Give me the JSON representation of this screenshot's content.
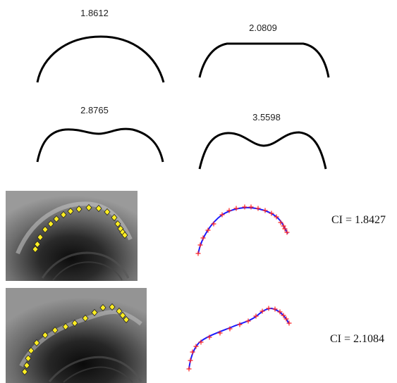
{
  "shapes": [
    {
      "id": "shape-1",
      "value": "1.8612"
    },
    {
      "id": "shape-2",
      "value": "2.0809"
    },
    {
      "id": "shape-3",
      "value": "2.8765"
    },
    {
      "id": "shape-4",
      "value": "3.5598"
    }
  ],
  "examples": [
    {
      "ci_text": "CI = 1.8427"
    },
    {
      "ci_text": "CI = 2.1084"
    }
  ],
  "colors": {
    "curve_black": "#000000",
    "fit_curve": "#1a1aff",
    "fit_markers": "#ff2020",
    "image_markers": "#ffee22"
  }
}
